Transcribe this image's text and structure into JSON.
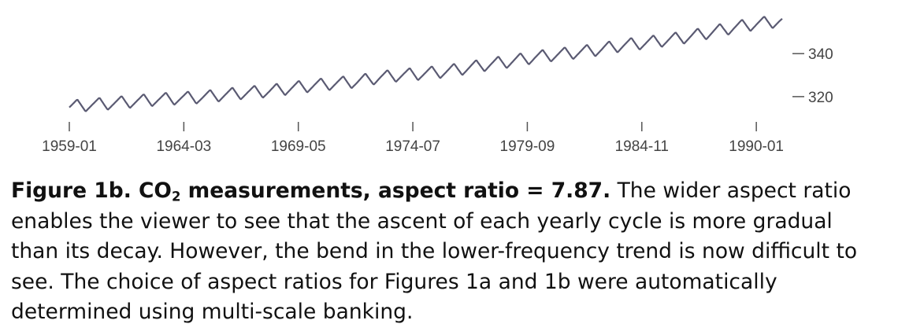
{
  "chart_data": {
    "type": "line",
    "title": "",
    "xlabel": "",
    "ylabel": "",
    "x_range": [
      "1959-01",
      "1991-06"
    ],
    "ylim": [
      313,
      358
    ],
    "x_ticks": [
      "1959-01",
      "1964-03",
      "1969-05",
      "1974-07",
      "1979-09",
      "1984-11",
      "1990-01"
    ],
    "y_ticks": [
      320,
      340
    ],
    "y_axis_position": "right",
    "grid": false,
    "legend": "none",
    "line_color": "#5a5a72",
    "series": [
      {
        "x": [
          "1959-01",
          "1960-01",
          "1961-01",
          "1962-01",
          "1963-01",
          "1964-01",
          "1965-01",
          "1966-01",
          "1967-01",
          "1968-01",
          "1969-01",
          "1970-01",
          "1971-01",
          "1972-01",
          "1973-01",
          "1974-01",
          "1975-01",
          "1976-01",
          "1977-01",
          "1978-01",
          "1979-01",
          "1980-01",
          "1981-01",
          "1982-01",
          "1983-01",
          "1984-01",
          "1985-01",
          "1986-01",
          "1987-01",
          "1988-01",
          "1989-01",
          "1990-01",
          "1991-01"
        ],
        "values": [
          315.4,
          316.3,
          317.0,
          317.9,
          318.7,
          319.3,
          319.8,
          320.9,
          321.9,
          322.6,
          324.0,
          325.2,
          326.2,
          327.1,
          329.0,
          330.1,
          330.8,
          331.8,
          333.4,
          335.2,
          336.6,
          338.4,
          339.6,
          340.7,
          342.1,
          344.0,
          345.1,
          346.4,
          348.0,
          350.1,
          352.3,
          353.9,
          355.1
        ]
      }
    ],
    "seasonal_amplitude_ppm": 6
  },
  "caption": {
    "label_prefix": "Figure 1b. CO",
    "label_subscript": "2",
    "label_suffix": " measurements, aspect ratio = 7.87.",
    "text": " The wider aspect ratio enables the viewer to see that the ascent of each yearly cycle is more gradual than its decay. However, the bend in the lower-frequency trend is now difficult to see. The choice of aspect ratios for Figures 1a and 1b were automatically determined using multi-scale banking."
  }
}
